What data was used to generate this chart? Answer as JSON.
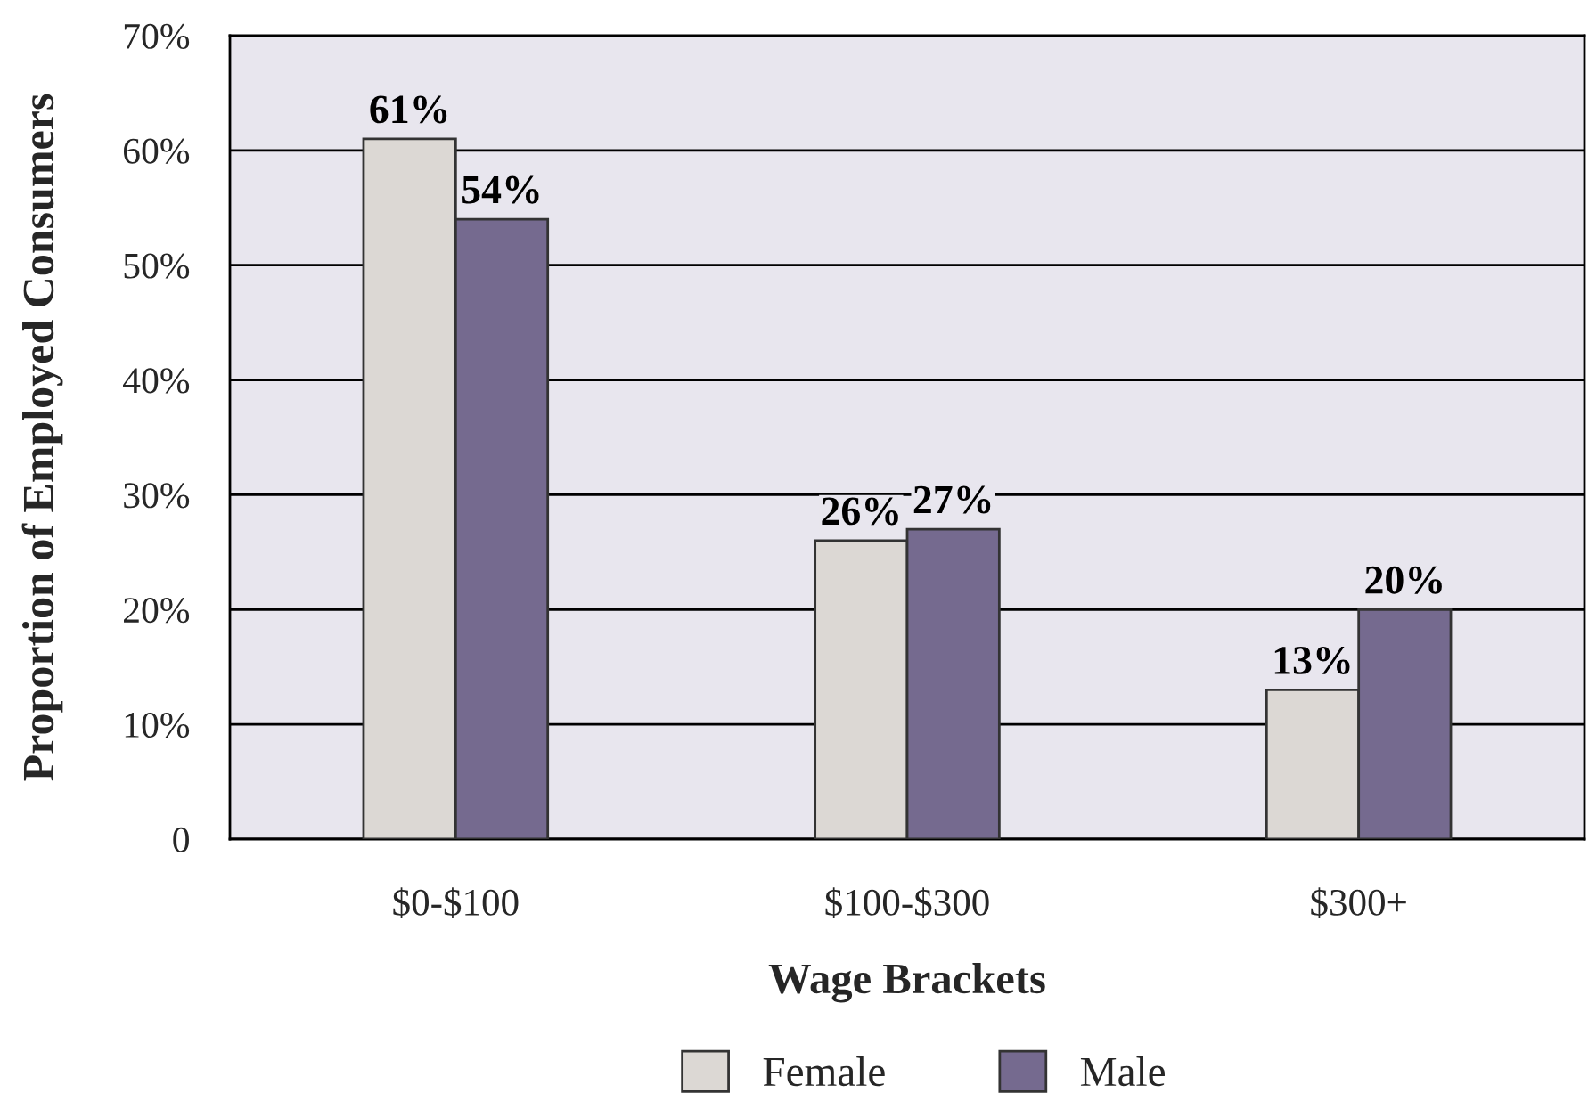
{
  "chart_data": {
    "type": "bar",
    "xlabel": "Wage Brackets",
    "ylabel": "Proportion of Employed Consumers",
    "categories": [
      "$0-$100",
      "$100-$300",
      "$300+"
    ],
    "series": [
      {
        "name": "Female",
        "color": "#dcd8d4",
        "values": [
          61,
          26,
          13
        ],
        "value_labels": [
          "61%",
          "26%",
          "13%"
        ]
      },
      {
        "name": "Male",
        "color": "#756a8f",
        "values": [
          54,
          27,
          20
        ],
        "value_labels": [
          "54%",
          "27%",
          "20%"
        ]
      }
    ],
    "ylim": [
      0,
      70
    ],
    "yticks": [
      0,
      {
        "value": 10,
        "label": "10%"
      },
      {
        "value": 20,
        "label": "20%"
      },
      {
        "value": 30,
        "label": "30%"
      },
      {
        "value": 40,
        "label": "40%"
      },
      {
        "value": 50,
        "label": "50%"
      },
      {
        "value": 60,
        "label": "60%"
      },
      {
        "value": 70,
        "label": "70%"
      }
    ],
    "grid": "y",
    "legend": "bottom"
  }
}
